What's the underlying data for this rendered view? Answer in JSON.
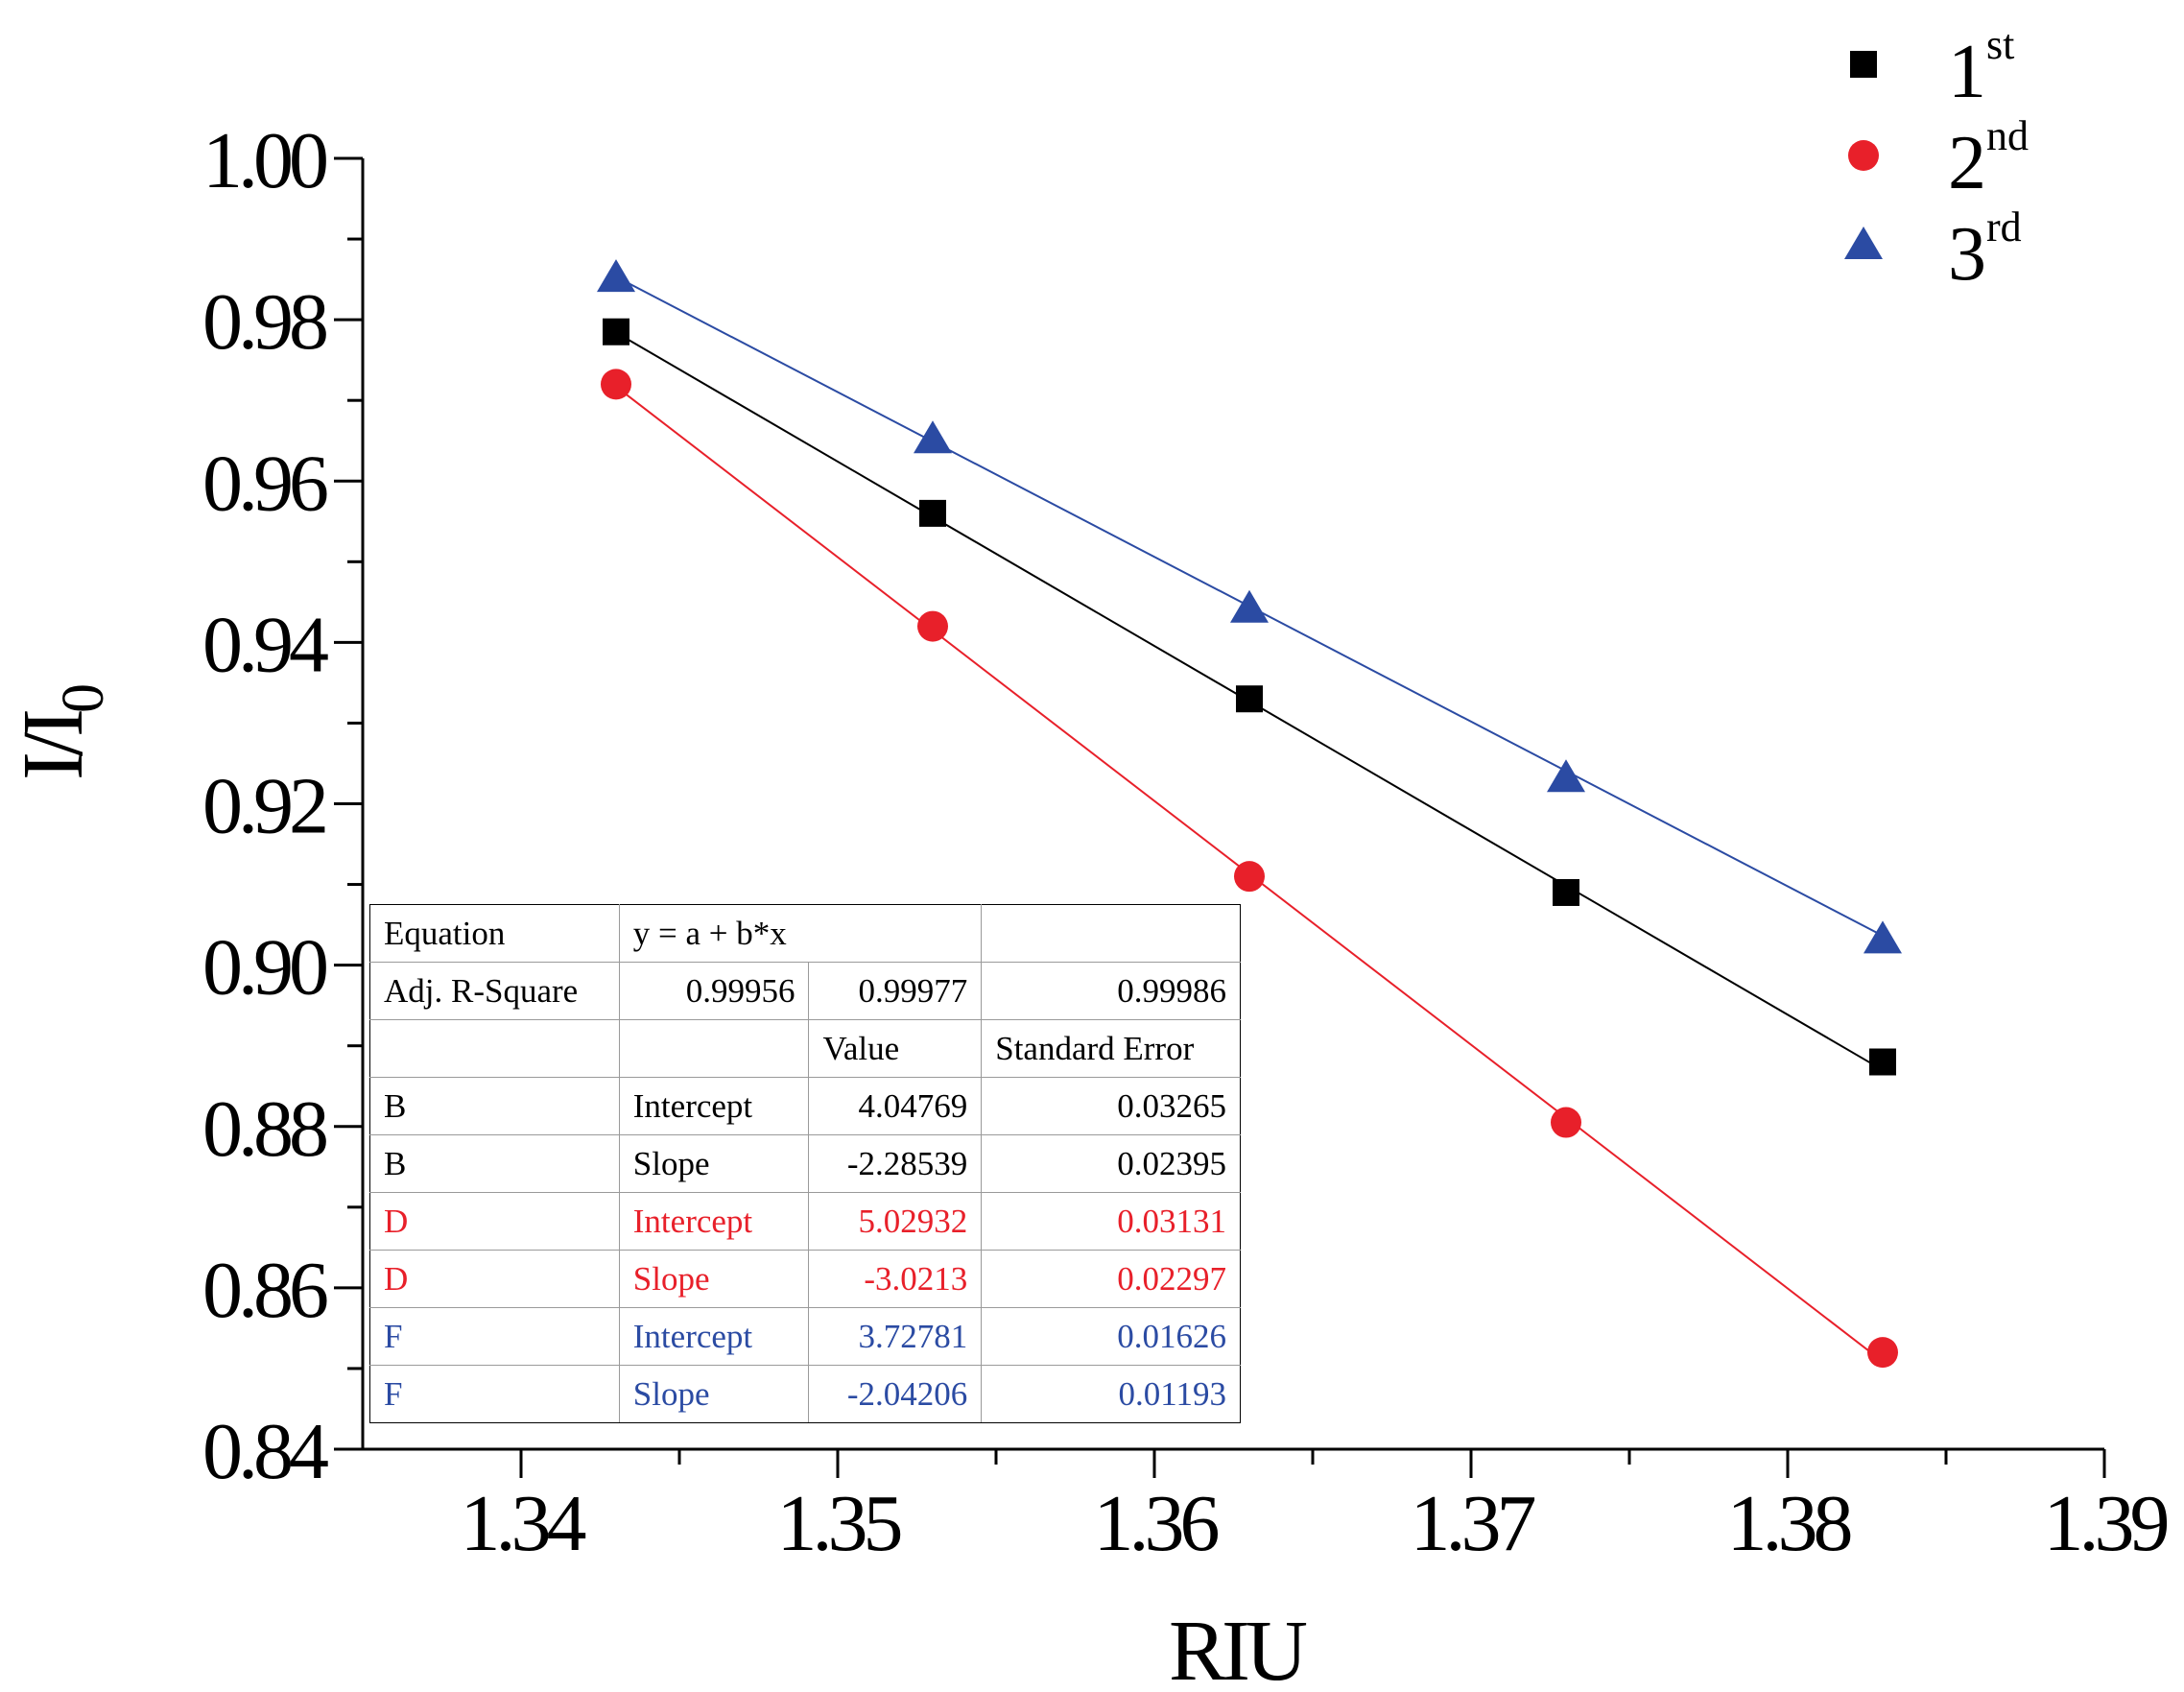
{
  "chart_data": {
    "type": "scatter",
    "xlabel": "RIU",
    "ylabel_main": "I/I",
    "ylabel_sub": "0",
    "xlim": [
      1.335,
      1.39
    ],
    "ylim": [
      0.84,
      1.0
    ],
    "xticks": [
      1.34,
      1.35,
      1.36,
      1.37,
      1.38,
      1.39
    ],
    "xtick_labels": [
      "1.34",
      "1.35",
      "1.36",
      "1.37",
      "1.38",
      "1.39"
    ],
    "xminor_ticks": [
      1.345,
      1.355,
      1.365,
      1.375,
      1.385
    ],
    "yticks": [
      0.84,
      0.86,
      0.88,
      0.9,
      0.92,
      0.94,
      0.96,
      0.98,
      1.0
    ],
    "ytick_labels": [
      "0.84",
      "0.86",
      "0.88",
      "0.90",
      "0.92",
      "0.94",
      "0.96",
      "0.98",
      "1.00"
    ],
    "yminor_ticks": [
      0.85,
      0.87,
      0.89,
      0.91,
      0.93,
      0.95,
      0.97,
      0.99
    ],
    "grid": false,
    "legend_position": "top-right",
    "x": [
      1.343,
      1.353,
      1.363,
      1.373,
      1.383
    ],
    "series": [
      {
        "name": "1",
        "sup": "st",
        "marker": "square",
        "color": "#000000",
        "values": [
          0.9785,
          0.956,
          0.933,
          0.909,
          0.888
        ],
        "fit": {
          "intercept": 4.04769,
          "slope": -2.28539
        }
      },
      {
        "name": "2",
        "sup": "nd",
        "marker": "circle",
        "color": "#e8202a",
        "values": [
          0.972,
          0.942,
          0.911,
          0.8805,
          0.852
        ],
        "fit": {
          "intercept": 5.02932,
          "slope": -3.0213
        }
      },
      {
        "name": "3",
        "sup": "rd",
        "marker": "triangle",
        "color": "#2b4ba3",
        "values": [
          0.985,
          0.965,
          0.944,
          0.923,
          0.903
        ],
        "fit": {
          "intercept": 3.72781,
          "slope": -2.04206
        }
      }
    ]
  },
  "fit_table": {
    "equation_label": "Equation",
    "equation": "y = a + b*x",
    "adj_r_label": "Adj. R-Square",
    "adj_r": [
      "0.99956",
      "0.99977",
      "0.99986"
    ],
    "value_header": "Value",
    "stderr_header": "Standard Error",
    "rows": [
      {
        "series": "B",
        "param": "Intercept",
        "value": "4.04769",
        "stderr": "0.03265",
        "color": "#000000"
      },
      {
        "series": "B",
        "param": "Slope",
        "value": "-2.28539",
        "stderr": "0.02395",
        "color": "#000000"
      },
      {
        "series": "D",
        "param": "Intercept",
        "value": "5.02932",
        "stderr": "0.03131",
        "color": "#e8202a"
      },
      {
        "series": "D",
        "param": "Slope",
        "value": "-3.0213",
        "stderr": "0.02297",
        "color": "#e8202a"
      },
      {
        "series": "F",
        "param": "Intercept",
        "value": "3.72781",
        "stderr": "0.01626",
        "color": "#2b4ba3"
      },
      {
        "series": "F",
        "param": "Slope",
        "value": "-2.04206",
        "stderr": "0.01193",
        "color": "#2b4ba3"
      }
    ]
  }
}
